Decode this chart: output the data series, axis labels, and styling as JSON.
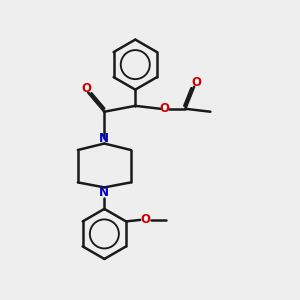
{
  "bg_color": "#eeeeee",
  "bond_color": "#1a1a1a",
  "N_color": "#0000cc",
  "O_color": "#cc0000",
  "bond_width": 1.8,
  "dbo": 0.07,
  "fig_size": [
    3.0,
    3.0
  ],
  "dpi": 100,
  "xlim": [
    0,
    10
  ],
  "ylim": [
    0,
    10
  ]
}
